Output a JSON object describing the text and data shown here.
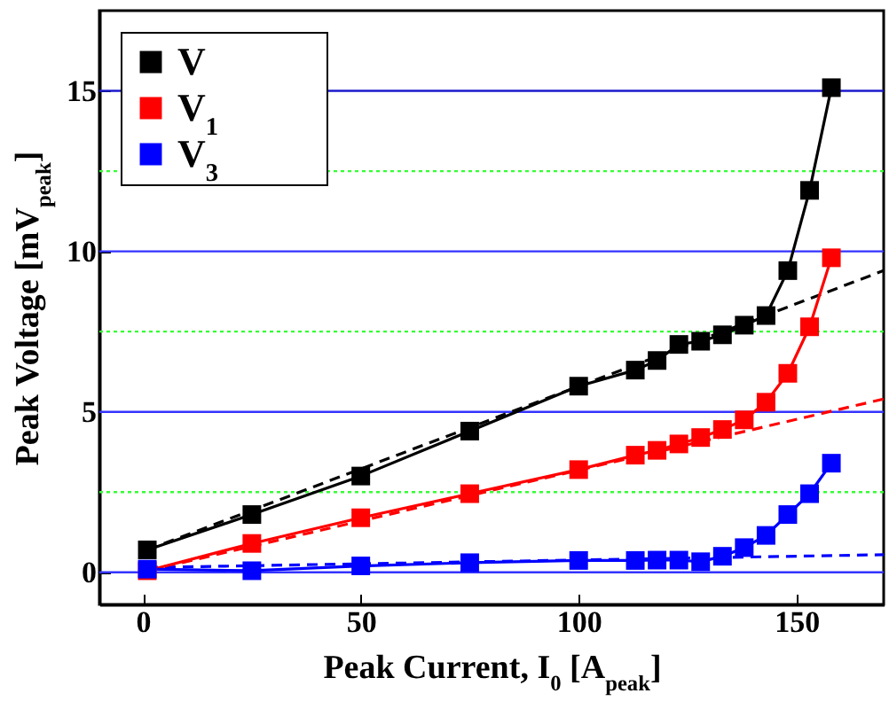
{
  "chart_data": {
    "type": "line",
    "xlabel": "Peak Current, I$_{0}$ [A$_{peak}$]",
    "ylabel": "Peak Voltage [mV$_{peak}$]",
    "xlim": [
      -10,
      170
    ],
    "xticks": [
      0,
      50,
      100,
      150
    ],
    "ylim": [
      -1,
      17.5
    ],
    "yticks": [
      0,
      5,
      10,
      15
    ],
    "grid": false,
    "legend": "top left",
    "marker": "square",
    "line_style": "solid",
    "ref_lines": [
      {
        "axis": "y",
        "value": 0,
        "color": "#3333ff",
        "line_style": "solid"
      },
      {
        "axis": "y",
        "value": 2.5,
        "color": "#33ff33",
        "line_style": "dotted"
      },
      {
        "axis": "y",
        "value": 5,
        "color": "#3333ff",
        "line_style": "solid"
      },
      {
        "axis": "y",
        "value": 7.5,
        "color": "#33ff33",
        "line_style": "dotted"
      },
      {
        "axis": "y",
        "value": 10,
        "color": "#3333ff",
        "line_style": "solid"
      },
      {
        "axis": "y",
        "value": 12.5,
        "color": "#33ff33",
        "line_style": "dotted"
      },
      {
        "axis": "y",
        "value": 15,
        "color": "#1a1acc",
        "line_style": "solid"
      }
    ],
    "series": [
      {
        "name": "V",
        "color": "#000000",
        "x": [
          1,
          25,
          50,
          75,
          100,
          113,
          118,
          123,
          128,
          133,
          138,
          143,
          148,
          153,
          158
        ],
        "values": [
          0.7,
          1.8,
          3.0,
          4.4,
          5.8,
          6.3,
          6.6,
          7.1,
          7.2,
          7.4,
          7.7,
          8.0,
          9.4,
          11.9,
          15.1
        ]
      },
      {
        "name": "V$_{1}$",
        "color": "#ff0000",
        "x": [
          1,
          25,
          50,
          75,
          100,
          113,
          118,
          123,
          128,
          133,
          138,
          143,
          148,
          153,
          158
        ],
        "values": [
          0.05,
          0.9,
          1.7,
          2.45,
          3.2,
          3.65,
          3.8,
          4.0,
          4.2,
          4.45,
          4.75,
          5.3,
          6.2,
          7.65,
          9.8
        ]
      },
      {
        "name": "V$_{3}$",
        "color": "#0000ff",
        "x": [
          1,
          25,
          50,
          75,
          100,
          113,
          118,
          123,
          128,
          133,
          138,
          143,
          148,
          153,
          158
        ],
        "values": [
          0.1,
          0.05,
          0.2,
          0.3,
          0.37,
          0.37,
          0.38,
          0.38,
          0.33,
          0.5,
          0.77,
          1.15,
          1.8,
          2.45,
          3.4
        ]
      },
      {
        "color": "#000000",
        "x": [
          1,
          170
        ],
        "values": [
          0.7,
          9.4
        ],
        "line_style": "dashed",
        "marker": "none"
      },
      {
        "color": "#ff0000",
        "x": [
          1,
          170
        ],
        "values": [
          0.05,
          5.4
        ],
        "line_style": "dashed",
        "marker": "none"
      },
      {
        "color": "#0000ff",
        "x": [
          1,
          170
        ],
        "values": [
          0.15,
          0.55
        ],
        "line_style": "dashed",
        "marker": "none"
      }
    ]
  }
}
